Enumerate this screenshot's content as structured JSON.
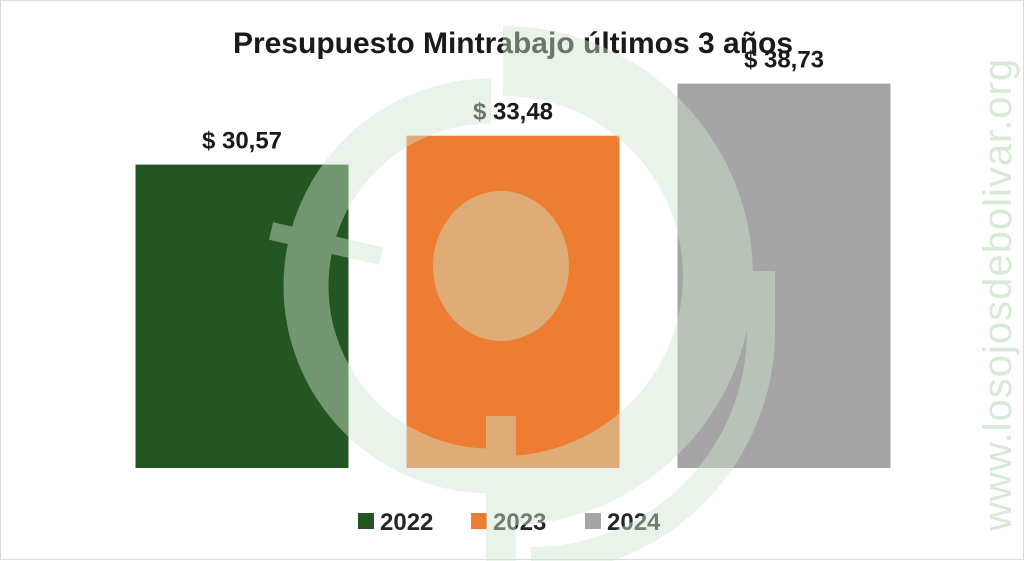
{
  "chart_data": {
    "type": "bar",
    "title": "Presupuesto Mintrabajo últimos 3 años",
    "categories": [
      "2022",
      "2023",
      "2024"
    ],
    "values": [
      30.57,
      33.48,
      38.73
    ],
    "data_labels": [
      "$ 30,57",
      "$ 33,48",
      "$ 38,73"
    ],
    "colors": [
      "#245623",
      "#ed7d31",
      "#a5a5a5"
    ],
    "ylim": [
      0,
      40
    ],
    "grid": false,
    "legend": "bottom"
  },
  "watermark": {
    "text": "www.losojosdebolivar.org",
    "color": "#d6ead6"
  }
}
